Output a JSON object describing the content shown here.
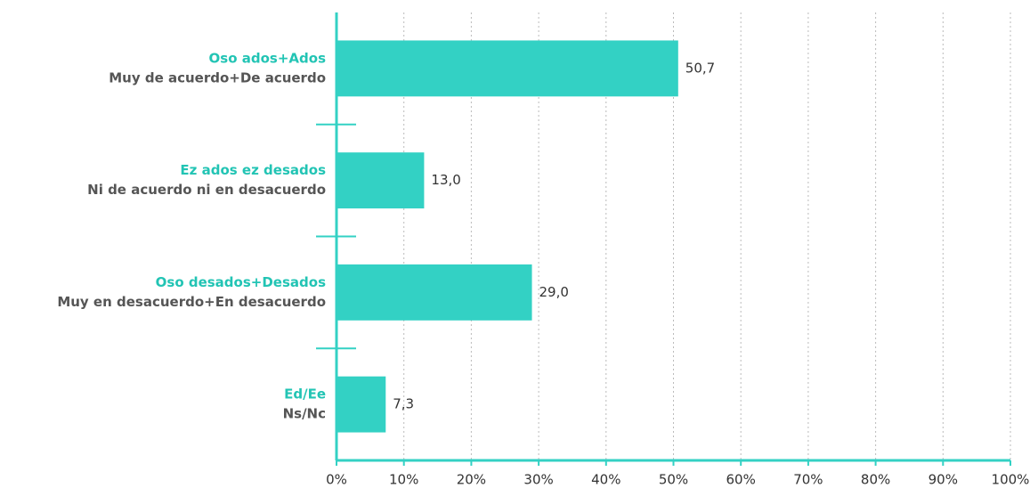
{
  "chart_data": {
    "type": "hbar",
    "categories": [
      [
        "Oso ados+Ados",
        "Muy de acuerdo+De acuerdo"
      ],
      [
        "Ez ados ez desados",
        "Ni de acuerdo ni en desacuerdo"
      ],
      [
        "Oso desados+Desados",
        "Muy en desacuerdo+En desacuerdo"
      ],
      [
        "Ed/Ee",
        "Ns/Nc"
      ]
    ],
    "values": [
      50.7,
      13.0,
      29.0,
      7.3
    ],
    "value_labels": [
      "50,7",
      "13,0",
      "29,0",
      "7,3"
    ],
    "color": "#33d1c4",
    "label_colors": [
      "#22c4b4",
      "#555555"
    ],
    "xlim": [
      0,
      100
    ],
    "xticks": [
      {
        "value": 0,
        "label": "0%"
      },
      {
        "value": 10,
        "label": "10%"
      },
      {
        "value": 20,
        "label": "20%"
      },
      {
        "value": 30,
        "label": "30%"
      },
      {
        "value": 40,
        "label": "40%"
      },
      {
        "value": 50,
        "label": "50%"
      },
      {
        "value": 60,
        "label": "60%"
      },
      {
        "value": 70,
        "label": "70%"
      },
      {
        "value": 80,
        "label": "80%"
      },
      {
        "value": 90,
        "label": "90%"
      },
      {
        "value": 100,
        "label": "100%"
      }
    ],
    "grid": true
  }
}
